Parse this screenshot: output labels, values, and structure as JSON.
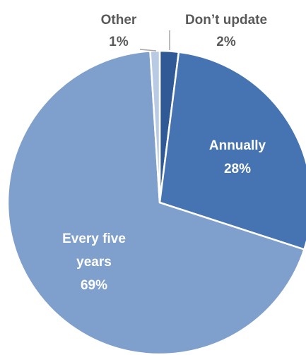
{
  "chart_data": {
    "type": "pie",
    "start_angle_deg": 0,
    "direction": "clockwise",
    "slices": [
      {
        "label": "Don’t update",
        "value": 2,
        "value_label": "2%",
        "color": "#2f5a95",
        "label_position": "outside",
        "label_color": "#595959"
      },
      {
        "label": "Annually",
        "value": 28,
        "value_label": "28%",
        "color": "#4674b2",
        "label_position": "inside",
        "label_color": "#ffffff"
      },
      {
        "label": "Every five years",
        "value": 69,
        "value_label": "69%",
        "color": "#7f9fcd",
        "label_position": "inside",
        "label_color": "#ffffff"
      },
      {
        "label": "Other",
        "value": 1,
        "value_label": "1%",
        "color": "#b9cbe4",
        "label_position": "outside",
        "label_color": "#595959"
      }
    ],
    "slice_border_color": "#ffffff",
    "leader_line_color": "#a6a6a6",
    "title": "",
    "legend": "none"
  }
}
